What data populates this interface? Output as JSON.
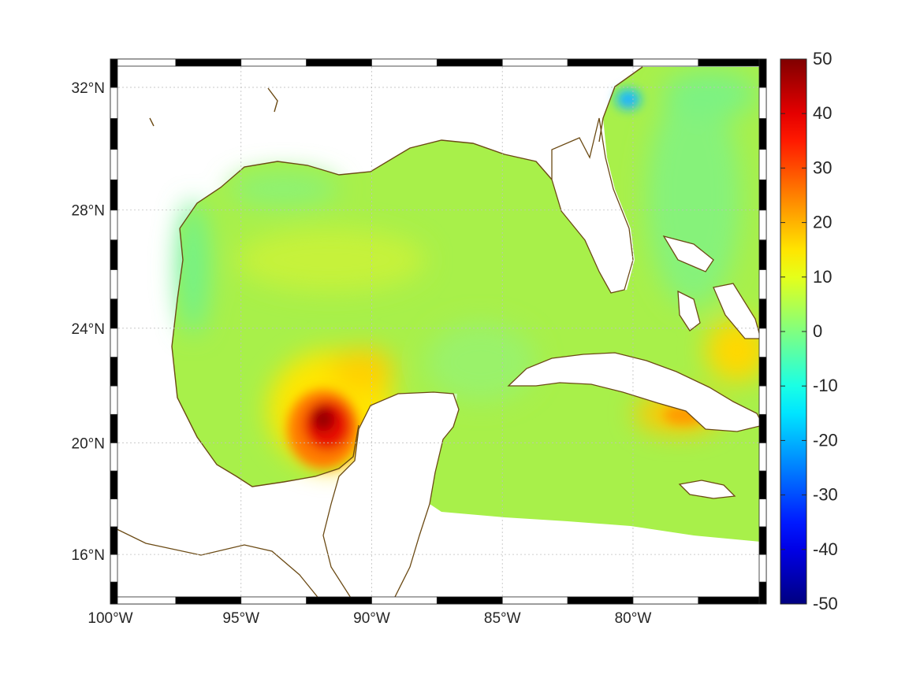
{
  "map": {
    "type": "heatmap",
    "projection": "mercator",
    "lon_range": [
      -100,
      -74.9
    ],
    "lat_range": [
      14.2,
      32.9
    ],
    "lon_ticks": [
      {
        "value": -100,
        "label": "100°W"
      },
      {
        "value": -95,
        "label": "95°W"
      },
      {
        "value": -90,
        "label": "90°W"
      },
      {
        "value": -85,
        "label": "85°W"
      },
      {
        "value": -80,
        "label": "80°W"
      }
    ],
    "lat_ticks": [
      {
        "value": 16,
        "label": "16°N"
      },
      {
        "value": 20,
        "label": "20°N"
      },
      {
        "value": 24,
        "label": "24°N"
      },
      {
        "value": 28,
        "label": "28°N"
      },
      {
        "value": 32,
        "label": "32°N"
      }
    ],
    "grid": true,
    "frame_style": "black-white checkered border",
    "coastline_color": "#6b4a14",
    "colorbar": {
      "colormap": "jet",
      "range": [
        -50,
        50
      ],
      "ticks": [
        {
          "value": 50,
          "label": "50"
        },
        {
          "value": 40,
          "label": "40"
        },
        {
          "value": 30,
          "label": "30"
        },
        {
          "value": 20,
          "label": "20"
        },
        {
          "value": 10,
          "label": "10"
        },
        {
          "value": 0,
          "label": "0"
        },
        {
          "value": -10,
          "label": "-10"
        },
        {
          "value": -20,
          "label": "-20"
        },
        {
          "value": -30,
          "label": "-30"
        },
        {
          "value": -40,
          "label": "-40"
        },
        {
          "value": -50,
          "label": "-50"
        }
      ]
    },
    "field_background_value": 6,
    "features": [
      {
        "name": "bay-of-campeche-maximum",
        "value": 47,
        "lon": -92.0,
        "lat": 20.6
      },
      {
        "name": "campeche-warm-tongue",
        "value": 22,
        "lon": -90.6,
        "lat": 22.4
      },
      {
        "name": "southern-cuba-anomaly",
        "value": 25,
        "lon": -77.8,
        "lat": 20.9
      },
      {
        "name": "bahamas-warm-patch",
        "value": 17,
        "lon": -75.6,
        "lat": 23.1
      },
      {
        "name": "georgia-shelf-cold-spot",
        "value": -13,
        "lon": -80.7,
        "lat": 31.7
      },
      {
        "name": "texas-shelf-cool-band",
        "value": 0,
        "lon": -97.4,
        "lat": 25.6
      },
      {
        "name": "louisiana-shelf-cool",
        "value": 2,
        "lon": -92.0,
        "lat": 28.6
      },
      {
        "name": "atlantic-cool-band",
        "value": 2,
        "lon": -78.8,
        "lat": 28.8
      }
    ]
  }
}
